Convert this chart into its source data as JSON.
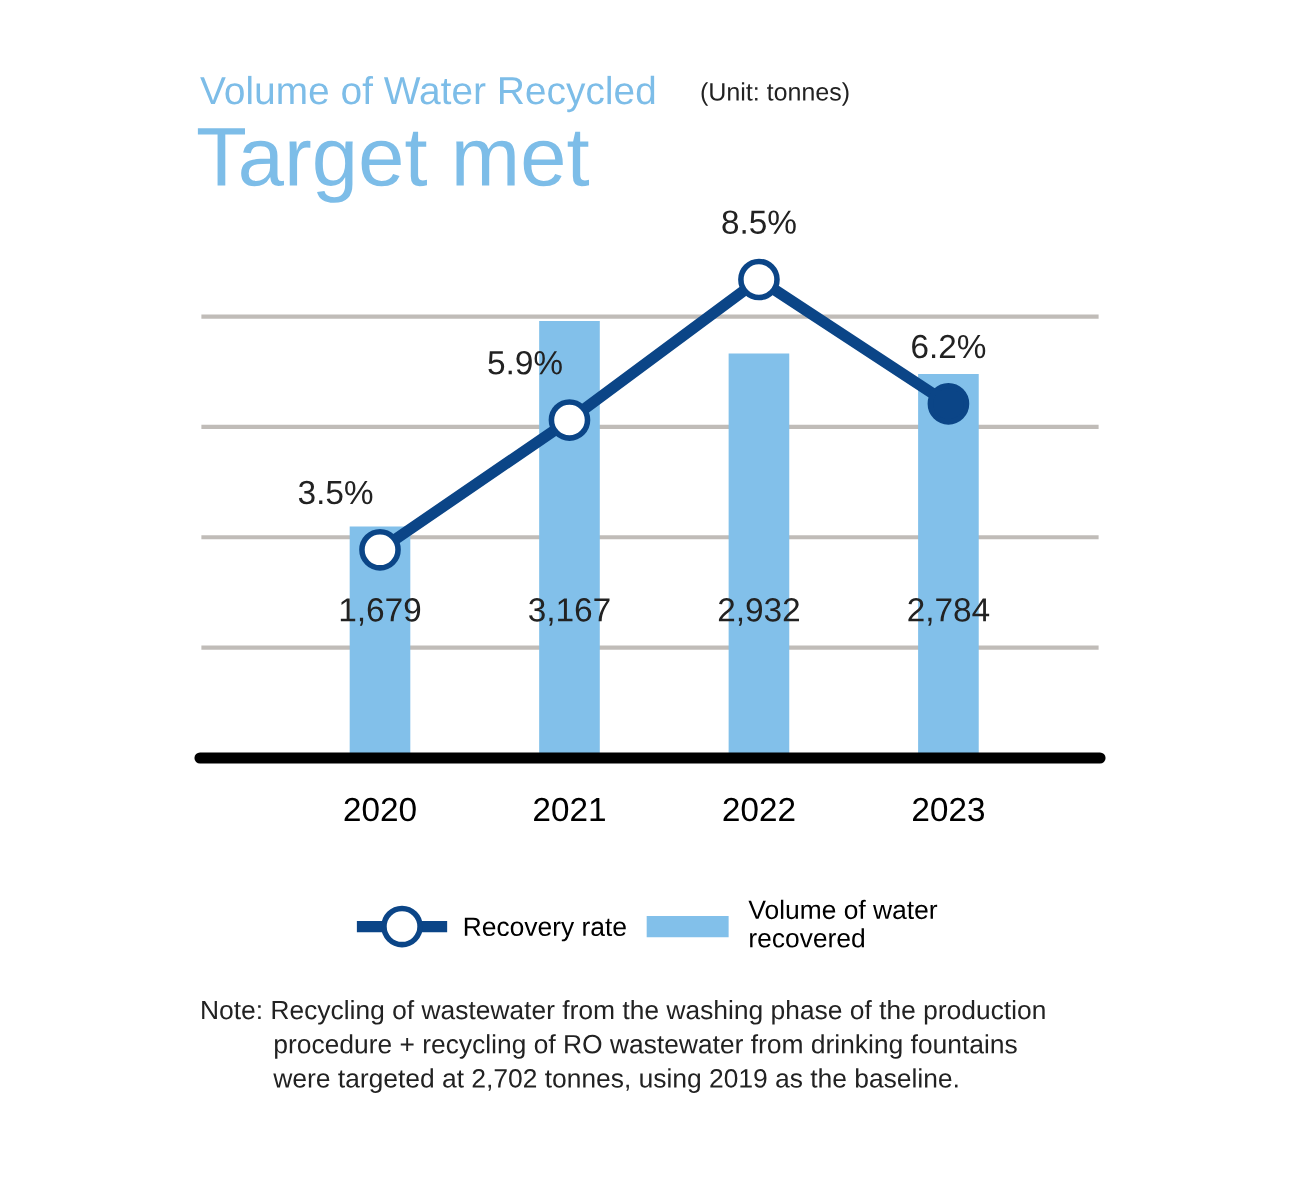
{
  "chart_data": {
    "type": "bar",
    "title": "Volume of Water Recycled",
    "subtitle": "Target met",
    "categories": [
      "2020",
      "2021",
      "2022",
      "2023"
    ],
    "series": [
      {
        "name": "Volume of water\nrecovered",
        "color": "#82c0ea",
        "values": [
          1679,
          3167,
          2932,
          2784
        ],
        "value_labels": [
          "1,679",
          "3,167",
          "2,932",
          "2,784"
        ]
      },
      {
        "name": "Recovery rate",
        "type": "line",
        "axis": "y2",
        "color": "#0b4587",
        "colors": [
          "#ffffff",
          "#ffffff",
          "#ffffff",
          "#0b4587"
        ],
        "values": [
          3.5,
          5.9,
          8.5,
          6.2
        ],
        "value_labels": [
          "3.5%",
          "5.9%",
          "8.5%",
          "6.2%"
        ]
      }
    ],
    "ylim": [
      0,
      3900
    ],
    "y2lim": [
      -0.35,
      9.6
    ],
    "yticks": [
      {
        "value": 800,
        "label": null
      },
      {
        "value": 1600,
        "label": null
      },
      {
        "value": 2400,
        "label": null
      },
      {
        "value": 3200,
        "label": null
      }
    ],
    "grid": "y",
    "legend": "bottom",
    "marker": "circle",
    "line_style": "solid",
    "tick_labels": "x",
    "annotations": [
      "(Unit: tonnes)",
      "Note: Recycling of wastewater from the washing phase of the production\n          procedure + recycling of RO wastewater from drinking fountains\n          were targeted at 2,702 tonnes, using 2019 as the baseline."
    ]
  }
}
